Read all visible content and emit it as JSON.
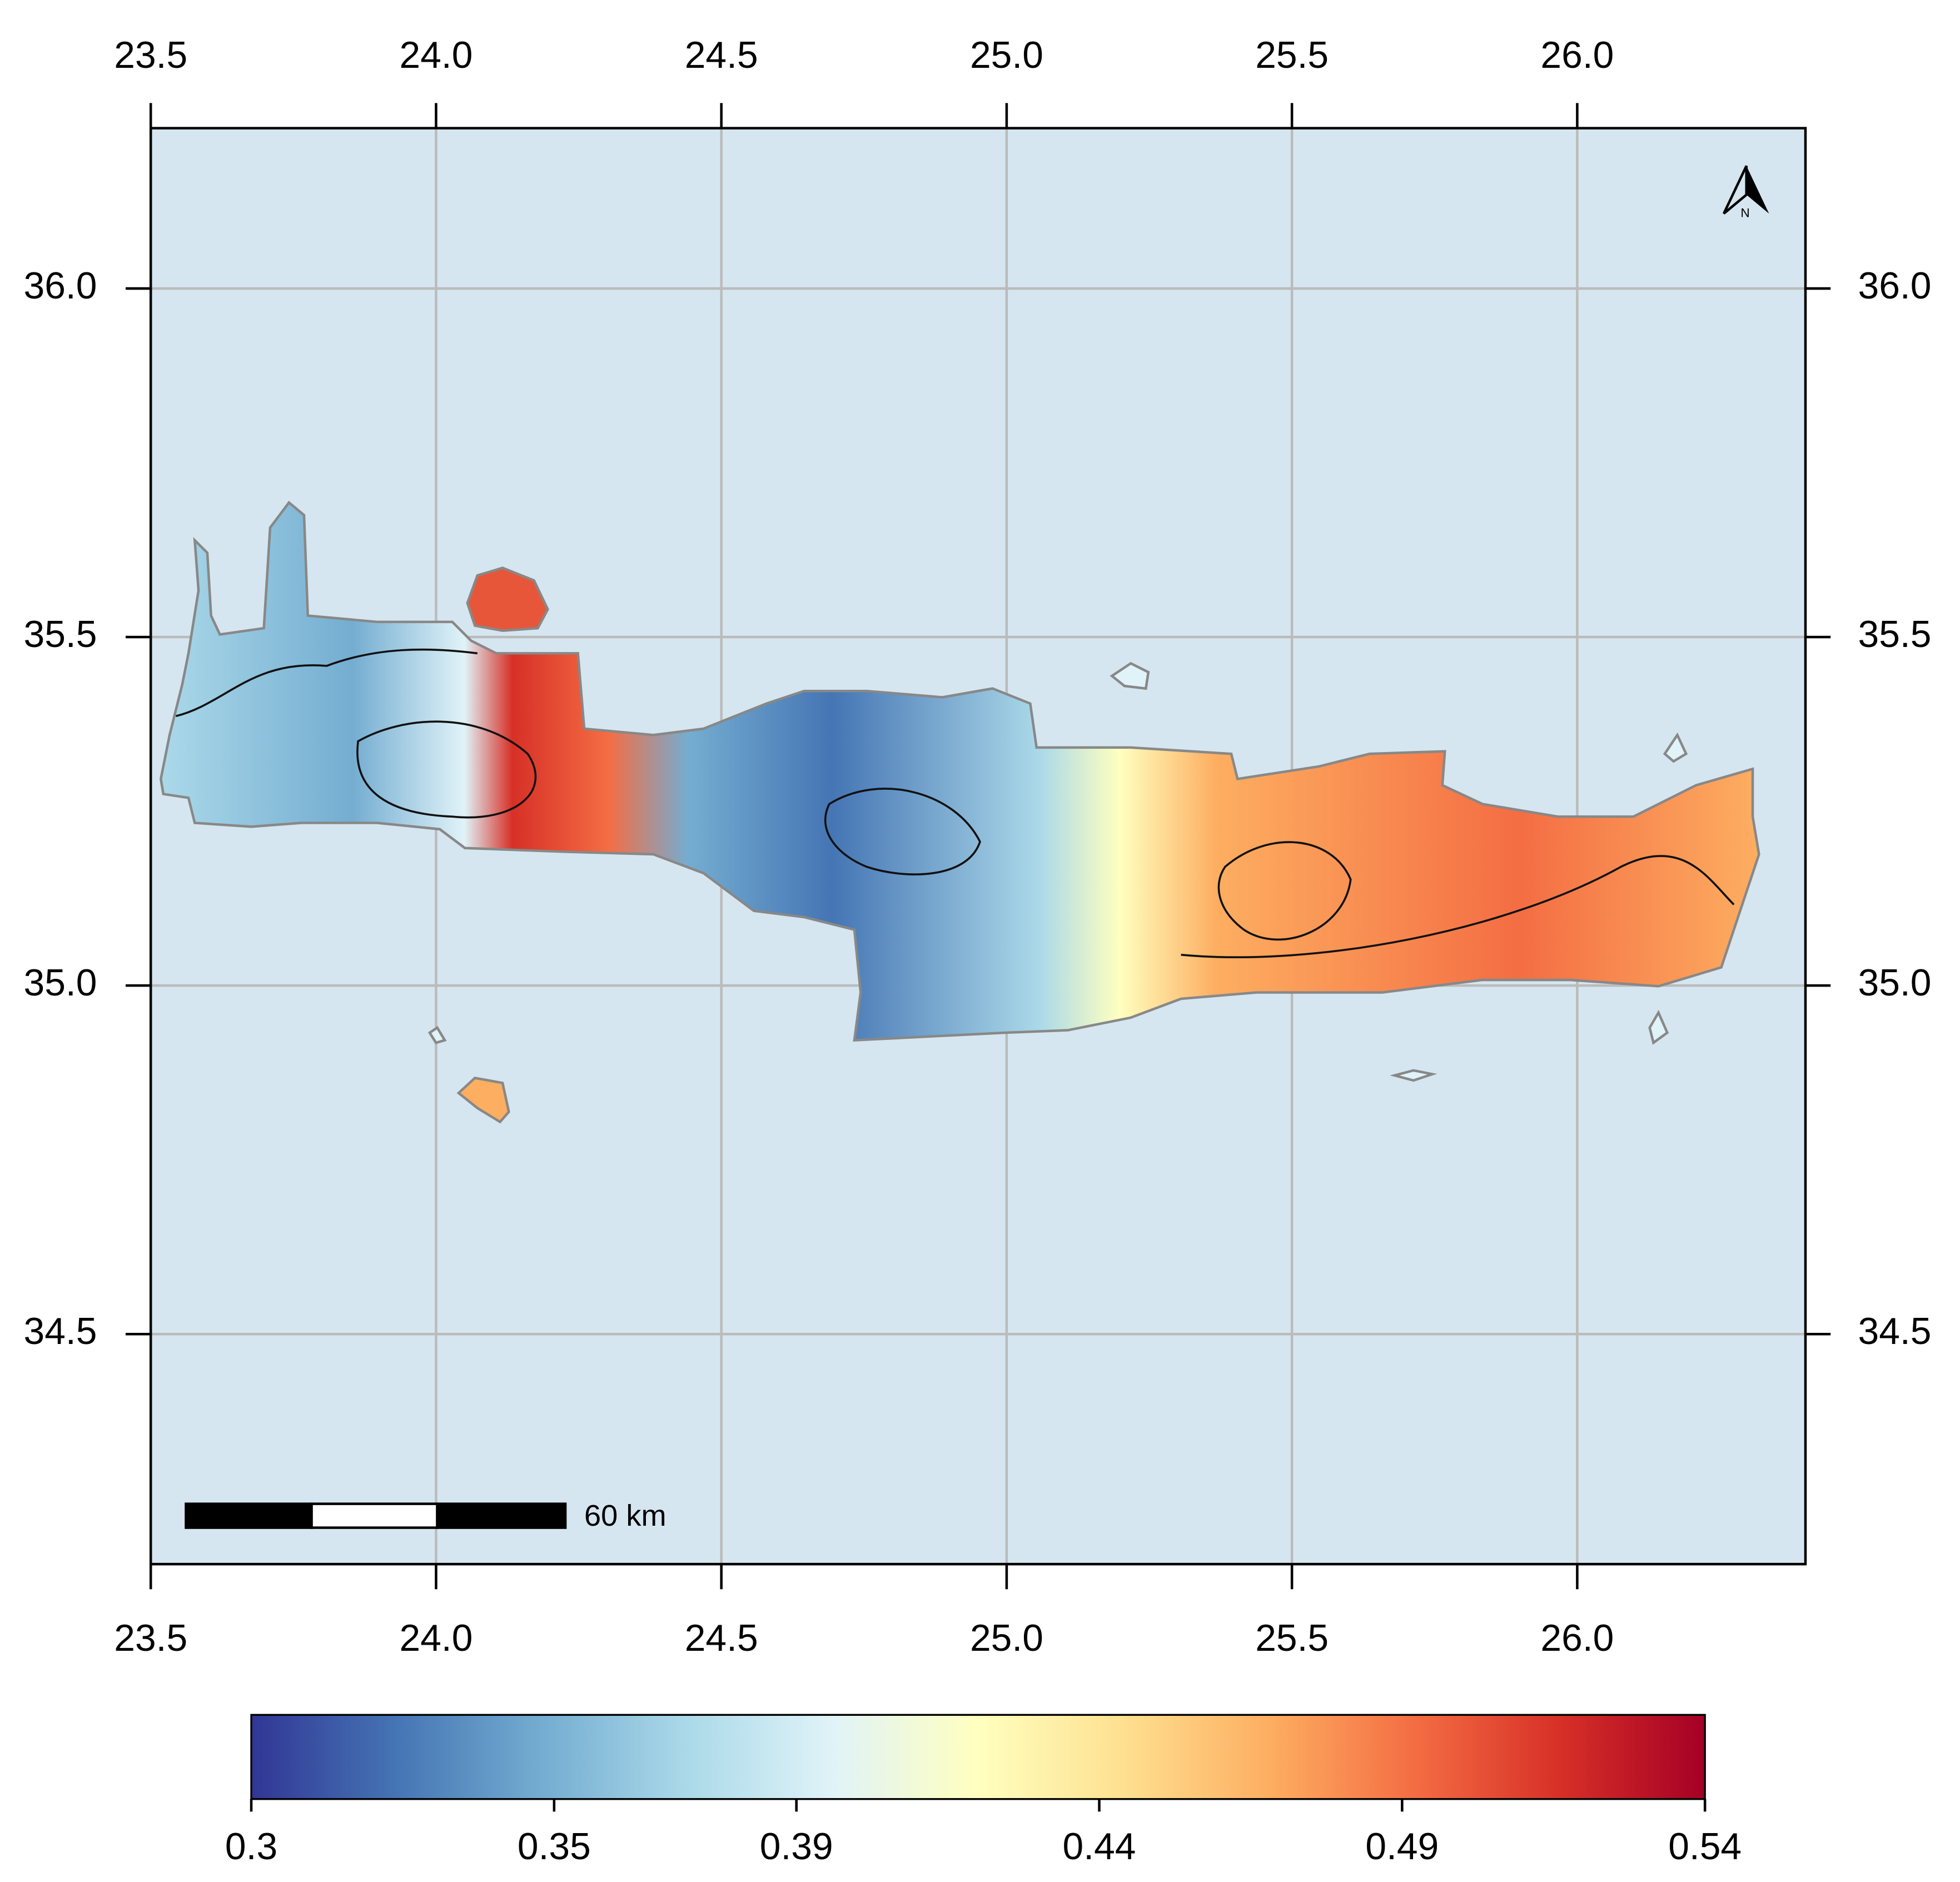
{
  "map": {
    "xlim": [
      23.5,
      26.4
    ],
    "ylim": [
      34.17,
      36.23
    ],
    "xticks": [
      23.5,
      {
        "value": 24,
        "label": "24.0"
      },
      24.5,
      {
        "value": 25,
        "label": "25.0"
      },
      25.5,
      {
        "value": 26,
        "label": "26.0"
      }
    ],
    "yticks": [
      34.5,
      {
        "value": 35,
        "label": "35.0"
      },
      35.5,
      {
        "value": 36,
        "label": "36.0"
      }
    ],
    "grid": true,
    "ocean_color": "#d6e6f0",
    "scale_bar": "60 km",
    "north_label": "N",
    "colorbar": {
      "lim": [
        0.3,
        0.54
      ],
      "ticks": [
        0.3,
        0.35,
        0.39,
        0.44,
        0.49,
        0.54
      ],
      "colors": [
        "#313695",
        "#4575b4",
        "#74add1",
        "#abd9e9",
        "#e0f3f8",
        "#ffffbf",
        "#fee090",
        "#fdae61",
        "#f46d43",
        "#d73027",
        "#a50026"
      ]
    }
  }
}
